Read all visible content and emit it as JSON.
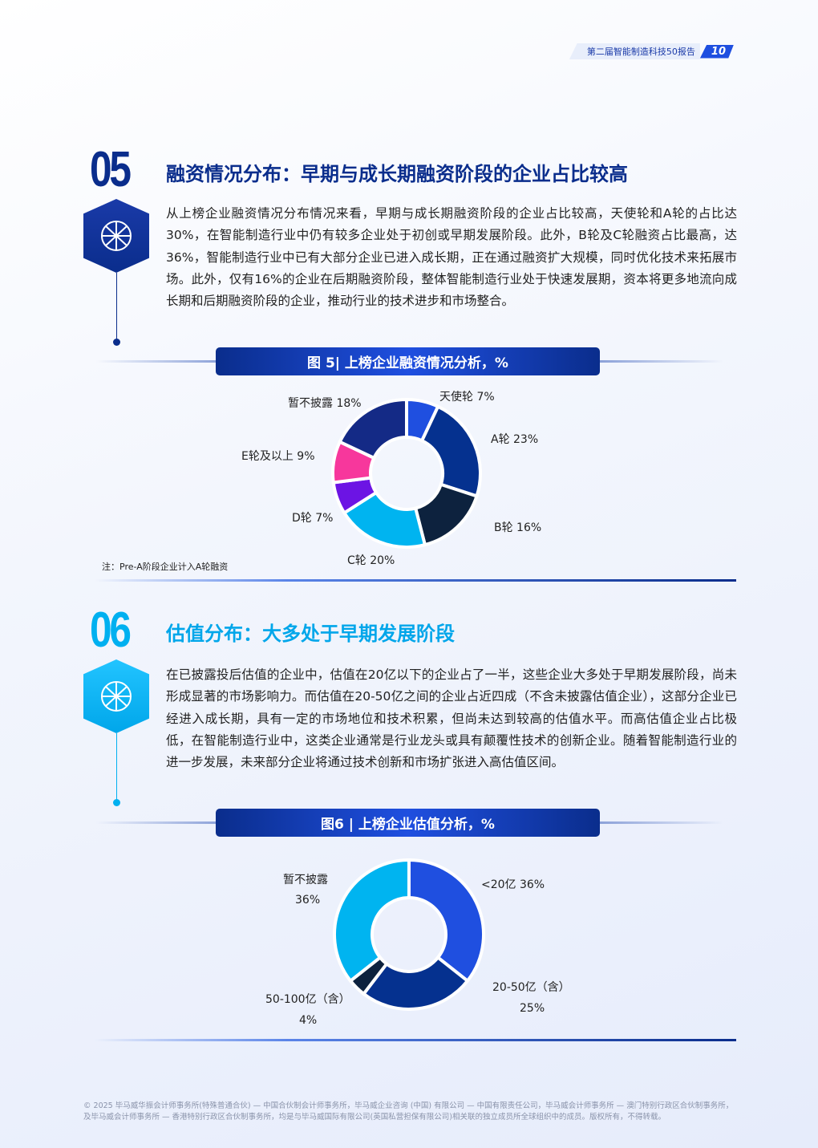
{
  "header": {
    "report_title": "第二届智能制造科技50报告",
    "page_number": "10"
  },
  "section5": {
    "number": "05",
    "title": "融资情况分布：早期与成长期融资阶段的企业占比较高",
    "body": "从上榜企业融资情况分布情况来看，早期与成长期融资阶段的企业占比较高，天使轮和A轮的占比达30%，在智能制造行业中仍有较多企业处于初创或早期发展阶段。此外，B轮及C轮融资占比最高，达36%，智能制造行业中已有大部分企业已进入成长期，正在通过融资扩大规模，同时优化技术来拓展市场。此外，仅有16%的企业在后期融资阶段，整体智能制造行业处于快速发展期，资本将更多地流向成长期和后期融资阶段的企业，推动行业的技术进步和市场整合。",
    "figure_title": "图 5| 上榜企业融资情况分析，%",
    "note": "注：Pre-A阶段企业计入A轮融资",
    "accent": "#0a2d8c"
  },
  "section6": {
    "number": "06",
    "title": "估值分布：大多处于早期发展阶段",
    "body": "在已披露投后估值的企业中，估值在20亿以下的企业占了一半，这些企业大多处于早期发展阶段，尚未形成显著的市场影响力。而估值在20-50亿之间的企业占近四成（不含未披露估值企业），这部分企业已经进入成长期，具有一定的市场地位和技术积累，但尚未达到较高的估值水平。而高估值企业占比极低，在智能制造行业中，这类企业通常是行业龙头或具有颠覆性技术的创新企业。随着智能制造行业的进一步发展，未来部分企业将通过技术创新和市场扩张进入高估值区间。",
    "figure_title": "图6 | 上榜企业估值分析，%",
    "accent": "#00b0f0"
  },
  "chart_data": [
    {
      "type": "pie",
      "donut": true,
      "categories": [
        "天使轮",
        "A轮",
        "B轮",
        "C轮",
        "D轮",
        "E轮及以上",
        "暂不披露"
      ],
      "values": [
        7,
        23,
        16,
        20,
        7,
        9,
        18
      ],
      "labels": [
        "天使轮 7%",
        "A轮 23%",
        "B轮 16%",
        "C轮 20%",
        "D轮 7%",
        "E轮及以上 9%",
        "暂不披露 18%"
      ],
      "colors": [
        "#1f4fe0",
        "#05318f",
        "#0d223e",
        "#00b4f0",
        "#6c14e4",
        "#f7379c",
        "#142a86"
      ]
    },
    {
      "type": "pie",
      "donut": true,
      "categories": [
        "<20亿",
        "20-50亿（含）",
        "50-100亿（含）",
        "暂不披露"
      ],
      "values": [
        36,
        25,
        4,
        36
      ],
      "labels": [
        "<20亿 36%",
        "20-50亿（含）",
        "50-100亿（含）",
        "暂不披露"
      ],
      "sublabels": [
        "",
        "25%",
        "4%",
        "36%"
      ],
      "colors": [
        "#1f4fe0",
        "#05318f",
        "#0d223e",
        "#00b4f0"
      ]
    }
  ],
  "footer": "© 2025 毕马威华振会计师事务所(特殊普通合伙) — 中国合伙制会计师事务所，毕马威企业咨询 (中国) 有限公司 — 中国有限责任公司，毕马威会计师事务所 — 澳门特别行政区合伙制事务所，及毕马威会计师事务所 — 香港特别行政区合伙制事务所，均是与毕马威国际有限公司(英国私营担保有限公司)相关联的独立成员所全球组织中的成员。版权所有，不得转载。"
}
